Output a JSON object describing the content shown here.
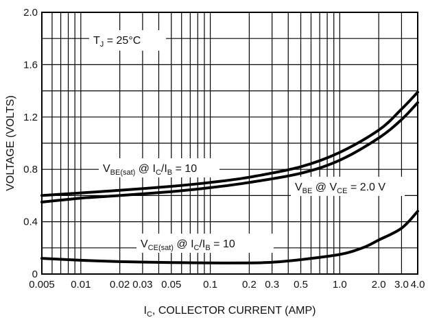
{
  "chart_data": {
    "type": "line",
    "title": "",
    "xlabel": "I_C, COLLECTOR CURRENT (AMP)",
    "ylabel": "VOLTAGE (VOLTS)",
    "x_scale": "log",
    "xlim": [
      0.005,
      4.0
    ],
    "ylim": [
      0,
      2.0
    ],
    "grid": true,
    "x_ticks": [
      "0.005",
      "0.01",
      "0.02",
      "0.03",
      "0.05",
      "0.1",
      "0.2",
      "0.3",
      "0.5",
      "1.0",
      "2.0",
      "3.0",
      "4.0"
    ],
    "y_ticks": [
      "0",
      "0.4",
      "0.8",
      "1.2",
      "1.6",
      "2.0"
    ],
    "annotations": {
      "tj": "T_J = 25°C",
      "vbe_sat": "V_BE(sat) @ I_C/I_B = 10",
      "vbe": "V_BE @ V_CE = 2.0 V",
      "vce_sat": "V_CE(sat) @ I_C/I_B = 10"
    },
    "series": [
      {
        "x": [
          0.005,
          0.01,
          0.02,
          0.05,
          0.1,
          0.2,
          0.5,
          1.0,
          2.0,
          3.0,
          4.0
        ],
        "y": [
          0.6,
          0.62,
          0.64,
          0.67,
          0.7,
          0.74,
          0.82,
          0.93,
          1.1,
          1.26,
          1.39
        ]
      },
      {
        "x": [
          0.005,
          0.01,
          0.02,
          0.05,
          0.1,
          0.2,
          0.5,
          1.0,
          2.0,
          3.0,
          4.0
        ],
        "y": [
          0.55,
          0.58,
          0.6,
          0.63,
          0.66,
          0.7,
          0.77,
          0.87,
          1.04,
          1.18,
          1.31
        ]
      },
      {
        "x": [
          0.005,
          0.01,
          0.02,
          0.05,
          0.1,
          0.2,
          0.3,
          0.5,
          1.0,
          1.5,
          2.0,
          3.0,
          4.0
        ],
        "y": [
          0.12,
          0.105,
          0.095,
          0.088,
          0.085,
          0.085,
          0.09,
          0.11,
          0.15,
          0.2,
          0.26,
          0.35,
          0.48
        ]
      }
    ]
  }
}
